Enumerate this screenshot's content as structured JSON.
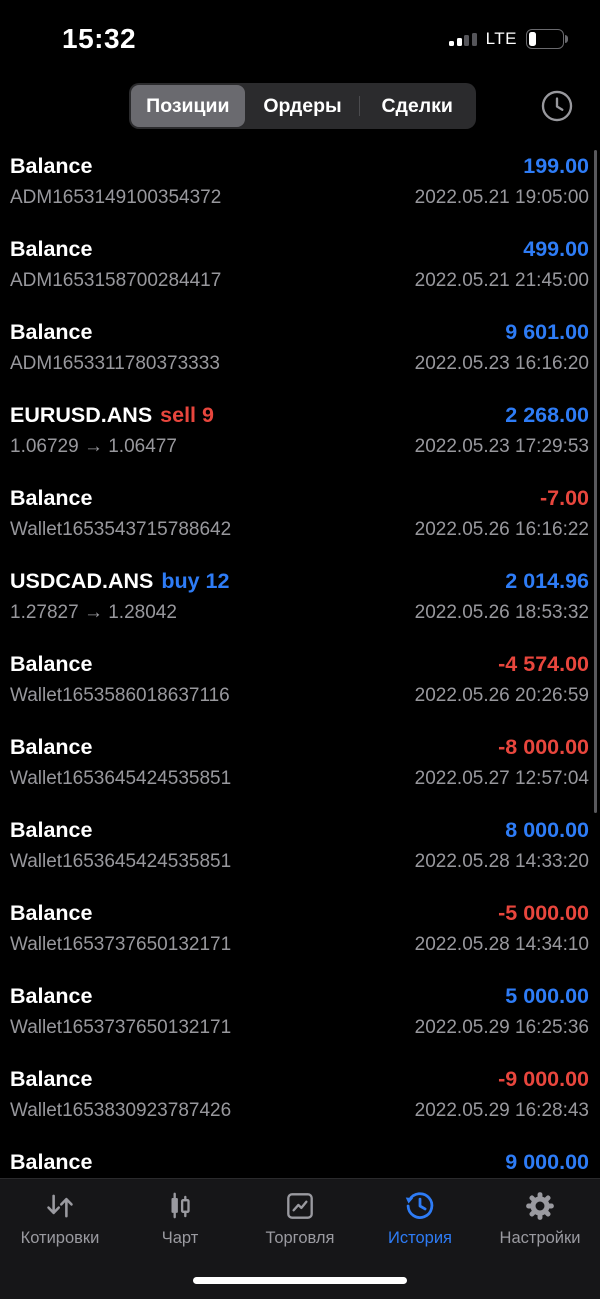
{
  "colors": {
    "positive": "#2e7cf6",
    "negative": "#e8463d",
    "muted": "#98989d",
    "background": "#000000",
    "tabbar_inactive": "#9a9aa0"
  },
  "status_bar": {
    "time": "15:32",
    "network": "LTE",
    "battery_level": "low"
  },
  "header": {
    "segments": [
      {
        "label": "Позиции",
        "selected": true
      },
      {
        "label": "Ордеры",
        "selected": false
      },
      {
        "label": "Сделки",
        "selected": false
      }
    ]
  },
  "rows": [
    {
      "symbol": "Balance",
      "value": "199.00",
      "value_color": "positive",
      "detail": "ADM1653149100354372",
      "datetime": "2022.05.21 19:05:00"
    },
    {
      "symbol": "Balance",
      "value": "499.00",
      "value_color": "positive",
      "detail": "ADM1653158700284417",
      "datetime": "2022.05.21 21:45:00"
    },
    {
      "symbol": "Balance",
      "value": "9 601.00",
      "value_color": "positive",
      "detail": "ADM1653311780373333",
      "datetime": "2022.05.23 16:16:20"
    },
    {
      "symbol": "EURUSD.ANS",
      "action": "sell 9",
      "action_color": "negative",
      "value": "2 268.00",
      "value_color": "positive",
      "detail": "1.06729 → 1.06477",
      "datetime": "2022.05.23 17:29:53"
    },
    {
      "symbol": "Balance",
      "value": "-7.00",
      "value_color": "negative",
      "detail": "Wallet1653543715788642",
      "datetime": "2022.05.26 16:16:22"
    },
    {
      "symbol": "USDCAD.ANS",
      "action": "buy 12",
      "action_color": "positive",
      "value": "2 014.96",
      "value_color": "positive",
      "detail": "1.27827 → 1.28042",
      "datetime": "2022.05.26 18:53:32"
    },
    {
      "symbol": "Balance",
      "value": "-4 574.00",
      "value_color": "negative",
      "detail": "Wallet1653586018637116",
      "datetime": "2022.05.26 20:26:59"
    },
    {
      "symbol": "Balance",
      "value": "-8 000.00",
      "value_color": "negative",
      "detail": "Wallet1653645424535851",
      "datetime": "2022.05.27 12:57:04"
    },
    {
      "symbol": "Balance",
      "value": "8 000.00",
      "value_color": "positive",
      "detail": "Wallet1653645424535851",
      "datetime": "2022.05.28 14:33:20"
    },
    {
      "symbol": "Balance",
      "value": "-5 000.00",
      "value_color": "negative",
      "detail": "Wallet1653737650132171",
      "datetime": "2022.05.28 14:34:10"
    },
    {
      "symbol": "Balance",
      "value": "5 000.00",
      "value_color": "positive",
      "detail": "Wallet1653737650132171",
      "datetime": "2022.05.29 16:25:36"
    },
    {
      "symbol": "Balance",
      "value": "-9 000.00",
      "value_color": "negative",
      "detail": "Wallet1653830923787426",
      "datetime": "2022.05.29 16:28:43"
    },
    {
      "symbol": "Balance",
      "value": "9 000.00",
      "value_color": "positive",
      "detail": "",
      "datetime": ""
    }
  ],
  "tab_bar": {
    "items": [
      {
        "label": "Котировки",
        "icon": "quotes-arrows-icon",
        "active": false
      },
      {
        "label": "Чарт",
        "icon": "candlestick-chart-icon",
        "active": false
      },
      {
        "label": "Торговля",
        "icon": "trade-chart-icon",
        "active": false
      },
      {
        "label": "История",
        "icon": "history-clock-icon",
        "active": true
      },
      {
        "label": "Настройки",
        "icon": "settings-gear-icon",
        "active": false
      }
    ]
  }
}
